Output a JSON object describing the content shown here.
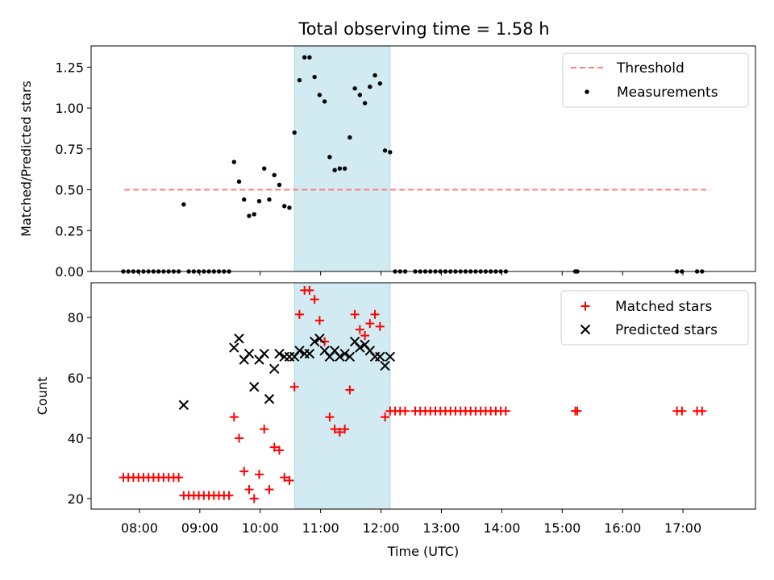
{
  "title": "Total observing time = 1.58 h",
  "colors": {
    "threshold": "#ff7f7f",
    "measurement": "#000000",
    "matched": "#ff0000",
    "predicted": "#000000",
    "highlight": "#add8e6"
  },
  "chart_data": [
    {
      "type": "scatter",
      "ylabel": "Matched/Predicted stars",
      "ylim": [
        0,
        1.38
      ],
      "yticks": [
        "0.00",
        "0.25",
        "0.50",
        "0.75",
        "1.00",
        "1.25"
      ],
      "highlight_span": [
        "10:34",
        "12:09"
      ],
      "legend": {
        "position": "upper-right",
        "entries": [
          "Threshold",
          "Measurements"
        ]
      },
      "threshold": {
        "name": "Threshold",
        "value": 0.5,
        "x_range": [
          "07:45",
          "17:27"
        ]
      },
      "measurements": {
        "name": "Measurements",
        "x": [
          "07:44",
          "07:49",
          "07:54",
          "07:59",
          "08:04",
          "08:09",
          "08:14",
          "08:19",
          "08:24",
          "08:29",
          "08:34",
          "08:39",
          "08:44",
          "08:49",
          "08:54",
          "08:59",
          "09:04",
          "09:09",
          "09:14",
          "09:19",
          "09:24",
          "09:29",
          "09:34",
          "09:39",
          "09:44",
          "09:49",
          "09:54",
          "09:59",
          "10:04",
          "10:09",
          "10:14",
          "10:19",
          "10:24",
          "10:29",
          "10:34",
          "10:39",
          "10:44",
          "10:49",
          "10:54",
          "10:59",
          "11:04",
          "11:09",
          "11:14",
          "11:19",
          "11:24",
          "11:29",
          "11:34",
          "11:39",
          "11:44",
          "11:49",
          "11:54",
          "11:59",
          "12:04",
          "12:09",
          "12:14",
          "12:19",
          "12:24",
          "12:34",
          "12:39",
          "12:44",
          "12:49",
          "12:54",
          "12:59",
          "13:04",
          "13:09",
          "13:14",
          "13:19",
          "13:24",
          "13:29",
          "13:34",
          "13:39",
          "13:44",
          "13:49",
          "13:54",
          "13:59",
          "14:04",
          "15:13",
          "15:15",
          "16:54",
          "16:59",
          "17:14",
          "17:19"
        ],
        "y": [
          0,
          0,
          0,
          0,
          0,
          0,
          0,
          0,
          0,
          0,
          0,
          0,
          0.41,
          0,
          0,
          0,
          0,
          0,
          0,
          0,
          0,
          0,
          0.67,
          0.55,
          0.44,
          0.34,
          0.35,
          0.43,
          0.63,
          0.44,
          0.59,
          0.53,
          0.4,
          0.39,
          0.85,
          1.17,
          1.31,
          1.31,
          1.19,
          1.08,
          1.04,
          0.7,
          0.62,
          0.63,
          0.63,
          0.82,
          1.12,
          1.08,
          1.03,
          1.13,
          1.2,
          1.15,
          0.74,
          0.73,
          0,
          0,
          0,
          0,
          0,
          0,
          0,
          0,
          0,
          0,
          0,
          0,
          0,
          0,
          0,
          0,
          0,
          0,
          0,
          0,
          0,
          0,
          0,
          0,
          0,
          0,
          0,
          0
        ]
      }
    },
    {
      "type": "scatter",
      "xlabel": "Time (UTC)",
      "ylabel": "Count",
      "ylim": [
        16.5,
        91.5
      ],
      "yticks": [
        "20",
        "40",
        "60",
        "80"
      ],
      "xlim": [
        "07:12",
        "18:12"
      ],
      "xticks": [
        "08:00",
        "09:00",
        "10:00",
        "11:00",
        "12:00",
        "13:00",
        "14:00",
        "15:00",
        "16:00",
        "17:00"
      ],
      "highlight_span": [
        "10:34",
        "12:09"
      ],
      "legend": {
        "position": "upper-right",
        "entries": [
          "Matched stars",
          "Predicted stars"
        ]
      },
      "series": [
        {
          "name": "Matched stars",
          "marker": "+",
          "x": [
            "07:44",
            "07:49",
            "07:54",
            "07:59",
            "08:04",
            "08:09",
            "08:14",
            "08:19",
            "08:24",
            "08:29",
            "08:34",
            "08:39",
            "08:44",
            "08:49",
            "08:54",
            "08:59",
            "09:04",
            "09:09",
            "09:14",
            "09:19",
            "09:24",
            "09:29",
            "09:34",
            "09:39",
            "09:44",
            "09:49",
            "09:54",
            "09:59",
            "10:04",
            "10:09",
            "10:14",
            "10:19",
            "10:24",
            "10:29",
            "10:34",
            "10:39",
            "10:44",
            "10:49",
            "10:54",
            "10:59",
            "11:04",
            "11:09",
            "11:14",
            "11:19",
            "11:24",
            "11:29",
            "11:34",
            "11:39",
            "11:44",
            "11:49",
            "11:54",
            "11:59",
            "12:04",
            "12:09",
            "12:14",
            "12:19",
            "12:24",
            "12:34",
            "12:39",
            "12:44",
            "12:49",
            "12:54",
            "12:59",
            "13:04",
            "13:09",
            "13:14",
            "13:19",
            "13:24",
            "13:29",
            "13:34",
            "13:39",
            "13:44",
            "13:49",
            "13:54",
            "13:59",
            "14:04",
            "15:13",
            "15:15",
            "16:54",
            "16:59",
            "17:14",
            "17:19"
          ],
          "y": [
            27,
            27,
            27,
            27,
            27,
            27,
            27,
            27,
            27,
            27,
            27,
            27,
            21,
            21,
            21,
            21,
            21,
            21,
            21,
            21,
            21,
            21,
            47,
            40,
            29,
            23,
            20,
            28,
            43,
            23,
            37,
            36,
            27,
            26,
            57,
            81,
            89,
            89,
            86,
            79,
            72,
            47,
            43,
            42,
            43,
            56,
            81,
            76,
            74,
            78,
            81,
            77,
            47,
            49,
            49,
            49,
            49,
            49,
            49,
            49,
            49,
            49,
            49,
            49,
            49,
            49,
            49,
            49,
            49,
            49,
            49,
            49,
            49,
            49,
            49,
            49,
            49,
            49,
            49,
            49,
            49,
            49
          ]
        },
        {
          "name": "Predicted stars",
          "marker": "x",
          "x": [
            "08:44",
            "09:34",
            "09:39",
            "09:44",
            "09:49",
            "09:54",
            "09:59",
            "10:04",
            "10:09",
            "10:14",
            "10:19",
            "10:24",
            "10:29",
            "10:34",
            "10:39",
            "10:44",
            "10:49",
            "10:54",
            "10:59",
            "11:04",
            "11:09",
            "11:14",
            "11:19",
            "11:24",
            "11:29",
            "11:34",
            "11:39",
            "11:44",
            "11:49",
            "11:54",
            "11:59",
            "12:04",
            "12:09"
          ],
          "y": [
            51,
            70,
            73,
            66,
            68,
            57,
            66,
            68,
            53,
            63,
            68,
            67,
            67,
            67,
            69,
            68,
            68,
            72,
            73,
            69,
            67,
            69,
            67,
            68,
            67,
            72,
            70,
            71,
            69,
            67,
            67,
            64,
            67
          ]
        }
      ]
    }
  ]
}
